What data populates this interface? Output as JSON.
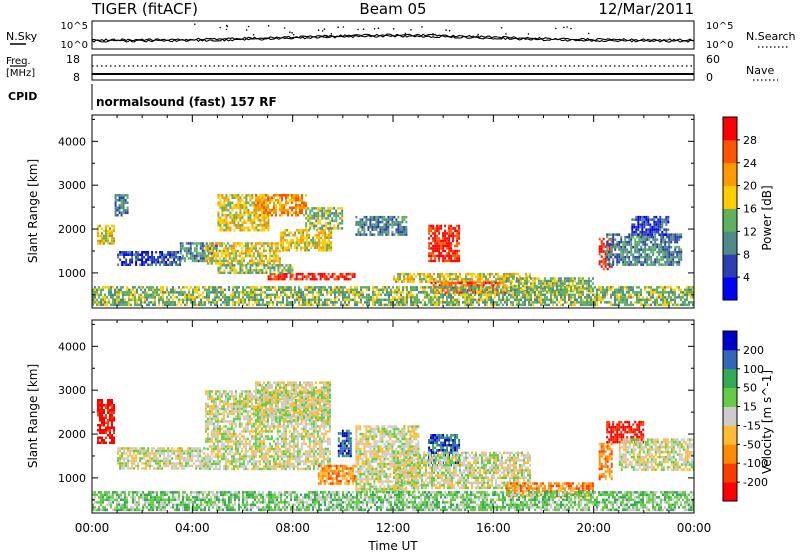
{
  "header": {
    "station": "TIGER (fitACF)",
    "beam": "Beam 05",
    "date": "12/Mar/2011"
  },
  "top_panels": {
    "nsky_label": "N.Sky",
    "nsky_ticks": [
      "10^5",
      "10^0"
    ],
    "nsearch_label": "N.Search",
    "nsearch_ticks": [
      "10^5",
      "10^0"
    ],
    "freq_label": "Freq.",
    "freq_unit": "[MHz]",
    "freq_ticks": [
      "18",
      "8"
    ],
    "nave_label": "Nave",
    "nave_ticks": [
      "60",
      "0"
    ],
    "cpid_label": "CPID",
    "cpid_text": "normalsound (fast) 157 RF"
  },
  "chart_data": [
    {
      "type": "heatmap",
      "name": "power-panel",
      "ylabel": "Slant Range [km]",
      "ylim": [
        200,
        4600
      ],
      "yticks": [
        "1000",
        "2000",
        "3000",
        "4000"
      ],
      "xlim": [
        0,
        24
      ],
      "colorbar": {
        "label": "Power [dB]",
        "tick_labels": [
          "4",
          "8",
          "12",
          "16",
          "20",
          "24",
          "28"
        ],
        "range": [
          0,
          32
        ],
        "colors": [
          "#0000ff",
          "#2c3fb0",
          "#4f8a8a",
          "#5fb05f",
          "#ffcc00",
          "#ff9900",
          "#ff5500",
          "#ff0000"
        ]
      },
      "echo_regions": [
        {
          "t": [
            0.2,
            0.9
          ],
          "r": [
            1700,
            2100
          ],
          "level": 4
        },
        {
          "t": [
            0.9,
            1.4
          ],
          "r": [
            2300,
            2800
          ],
          "level": 2
        },
        {
          "t": [
            1.0,
            3.5
          ],
          "r": [
            1200,
            1500
          ],
          "level": 1
        },
        {
          "t": [
            3.5,
            5.0
          ],
          "r": [
            1300,
            1700
          ],
          "level": 2
        },
        {
          "t": [
            4.5,
            7.5
          ],
          "r": [
            1200,
            1700
          ],
          "level": 4
        },
        {
          "t": [
            5.0,
            7.0
          ],
          "r": [
            2000,
            2800
          ],
          "level": 4
        },
        {
          "t": [
            6.5,
            8.5
          ],
          "r": [
            2300,
            2800
          ],
          "level": 5
        },
        {
          "t": [
            7.5,
            9.5
          ],
          "r": [
            1500,
            2000
          ],
          "level": 4
        },
        {
          "t": [
            8.5,
            10.0
          ],
          "r": [
            2000,
            2500
          ],
          "level": 3
        },
        {
          "t": [
            7.0,
            10.5
          ],
          "r": [
            850,
            1000
          ],
          "level": 7
        },
        {
          "t": [
            5.0,
            8.0
          ],
          "r": [
            1000,
            1200
          ],
          "level": 3
        },
        {
          "t": [
            10.5,
            12.5
          ],
          "r": [
            1900,
            2300
          ],
          "level": 2
        },
        {
          "t": [
            13.4,
            14.6
          ],
          "r": [
            1300,
            2100
          ],
          "level": 7
        },
        {
          "t": [
            12.0,
            17.5
          ],
          "r": [
            800,
            1000
          ],
          "level": 4
        },
        {
          "t": [
            13.5,
            16.5
          ],
          "r": [
            550,
            800
          ],
          "level": 6
        },
        {
          "t": [
            16.5,
            20.0
          ],
          "r": [
            600,
            900
          ],
          "level": 3
        },
        {
          "t": [
            20.2,
            20.7
          ],
          "r": [
            1100,
            1800
          ],
          "level": 7
        },
        {
          "t": [
            20.5,
            23.5
          ],
          "r": [
            1200,
            1900
          ],
          "level": 2
        },
        {
          "t": [
            21.5,
            23.0
          ],
          "r": [
            1900,
            2300
          ],
          "level": 1
        },
        {
          "t": [
            0.0,
            24.0
          ],
          "r": [
            300,
            700
          ],
          "level": 3
        }
      ]
    },
    {
      "type": "heatmap",
      "name": "velocity-panel",
      "ylabel": "Slant Range [km]",
      "xlabel": "Time UT",
      "ylim": [
        200,
        4600
      ],
      "yticks": [
        "1000",
        "2000",
        "3000",
        "4000"
      ],
      "xlim": [
        0,
        24
      ],
      "xticks": [
        "00:00",
        "04:00",
        "08:00",
        "12:00",
        "16:00",
        "20:00",
        "00:00"
      ],
      "colorbar": {
        "label": "Velocity [m s^-1]",
        "tick_labels": [
          "-200",
          "-100",
          "-50",
          "-15",
          "15",
          "50",
          "100",
          "200"
        ],
        "range": [
          -250,
          250
        ],
        "colors": [
          "#ff0000",
          "#ff3c00",
          "#ff8c00",
          "#ffbb33",
          "#cccccc",
          "#66cc44",
          "#33aa55",
          "#3366bb",
          "#0000cc"
        ]
      },
      "echo_regions": [
        {
          "t": [
            0.2,
            0.9
          ],
          "r": [
            1800,
            2800
          ],
          "level": 0
        },
        {
          "t": [
            1.0,
            4.5
          ],
          "r": [
            1200,
            1700
          ],
          "level": 4
        },
        {
          "t": [
            4.5,
            9.5
          ],
          "r": [
            1200,
            3000
          ],
          "level": 4
        },
        {
          "t": [
            6.5,
            9.5
          ],
          "r": [
            2300,
            3200
          ],
          "level": 4
        },
        {
          "t": [
            9.0,
            10.5
          ],
          "r": [
            900,
            1300
          ],
          "level": 2
        },
        {
          "t": [
            9.8,
            10.3
          ],
          "r": [
            1500,
            2100
          ],
          "level": 7
        },
        {
          "t": [
            10.5,
            13.0
          ],
          "r": [
            700,
            2200
          ],
          "level": 4
        },
        {
          "t": [
            13.4,
            14.6
          ],
          "r": [
            1300,
            2000
          ],
          "level": 7
        },
        {
          "t": [
            12.0,
            17.5
          ],
          "r": [
            800,
            1600
          ],
          "level": 4
        },
        {
          "t": [
            16.5,
            20.0
          ],
          "r": [
            600,
            900
          ],
          "level": 2
        },
        {
          "t": [
            20.2,
            20.7
          ],
          "r": [
            1000,
            1800
          ],
          "level": 2
        },
        {
          "t": [
            20.5,
            22.0
          ],
          "r": [
            1800,
            2300
          ],
          "level": 0
        },
        {
          "t": [
            21.0,
            24.0
          ],
          "r": [
            1200,
            1900
          ],
          "level": 4
        },
        {
          "t": [
            0.0,
            24.0
          ],
          "r": [
            300,
            700
          ],
          "level": 5
        }
      ]
    }
  ]
}
